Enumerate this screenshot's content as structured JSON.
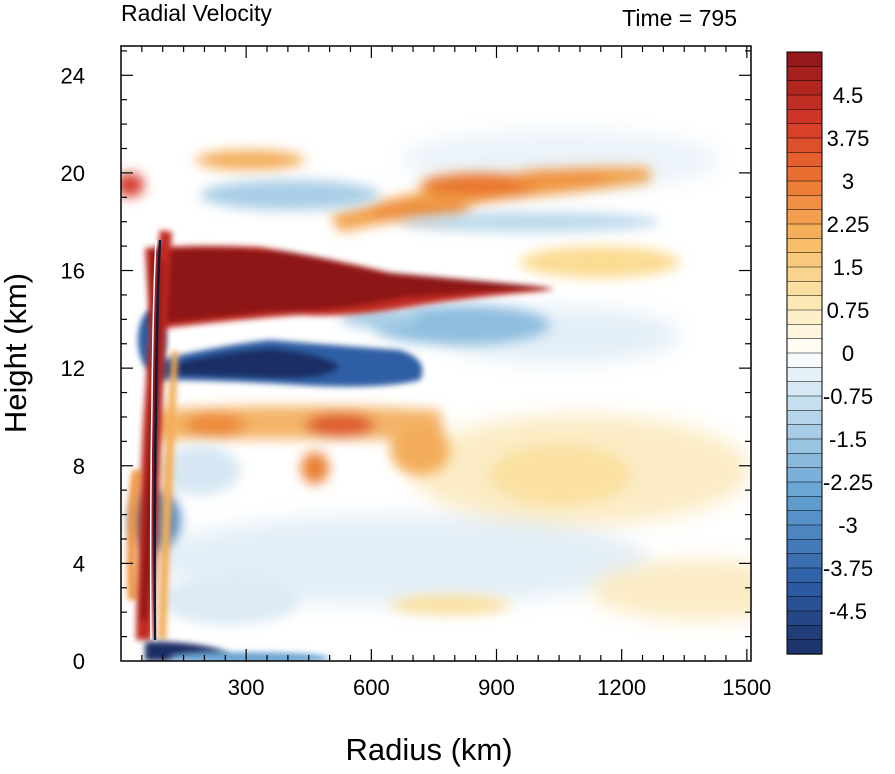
{
  "chart_data": {
    "type": "heatmap",
    "title": "Radial Velocity",
    "subtitle": "Time = 795",
    "xlabel": "Radius (km)",
    "ylabel": "Height (km)",
    "xlim": [
      0,
      1510
    ],
    "ylim": [
      0,
      25.2
    ],
    "x_ticks": [
      300,
      600,
      900,
      1200,
      1500
    ],
    "x_tick_labels": [
      "300",
      "600",
      "900",
      "1200",
      "1500"
    ],
    "y_ticks": [
      0,
      4,
      8,
      12,
      16,
      20,
      24
    ],
    "y_tick_labels": [
      "0",
      "4",
      "8",
      "12",
      "16",
      "20",
      "24"
    ],
    "grid": false,
    "colorbar": {
      "position": "right",
      "min": -5.25,
      "max": 5.25,
      "interval": 0.25,
      "labels": [
        "4.5",
        "3.75",
        "3",
        "2.25",
        "1.5",
        "0.75",
        "0",
        "-0.75",
        "-1.5",
        "-2.25",
        "-3",
        "-3.75",
        "-4.5"
      ],
      "label_values": [
        4.5,
        3.75,
        3,
        2.25,
        1.5,
        0.75,
        0,
        -0.75,
        -1.5,
        -2.25,
        -3,
        -3.75,
        -4.5
      ],
      "color_low": "#1b2f66",
      "color_mid": "#ffffff",
      "color_high": "#8e1418"
    },
    "features": [
      {
        "desc": "upper outflow jet",
        "x": [
          80,
          1070
        ],
        "height_center": 15.3,
        "value": 5.5
      },
      {
        "desc": "inflow layer below outflow",
        "x": [
          110,
          650
        ],
        "height_center": 12.1,
        "value": -5.2
      },
      {
        "desc": "surface inflow",
        "x": [
          70,
          300
        ],
        "height_center": 0.5,
        "value": -5.0
      },
      {
        "desc": "eyewall outflow column",
        "x": [
          60,
          140
        ],
        "height": [
          1,
          17
        ],
        "value": 4.5
      },
      {
        "desc": "mid-level outflow band",
        "x": [
          130,
          800
        ],
        "height_center": 9.8,
        "value": 2.5
      },
      {
        "desc": "upper outflow band",
        "x": [
          500,
          1300
        ],
        "height_center": 19.6,
        "value": 2.5
      },
      {
        "desc": "weak inflow band",
        "x": [
          200,
          1200
        ],
        "height_center": 18.1,
        "value": -1.2
      }
    ]
  }
}
